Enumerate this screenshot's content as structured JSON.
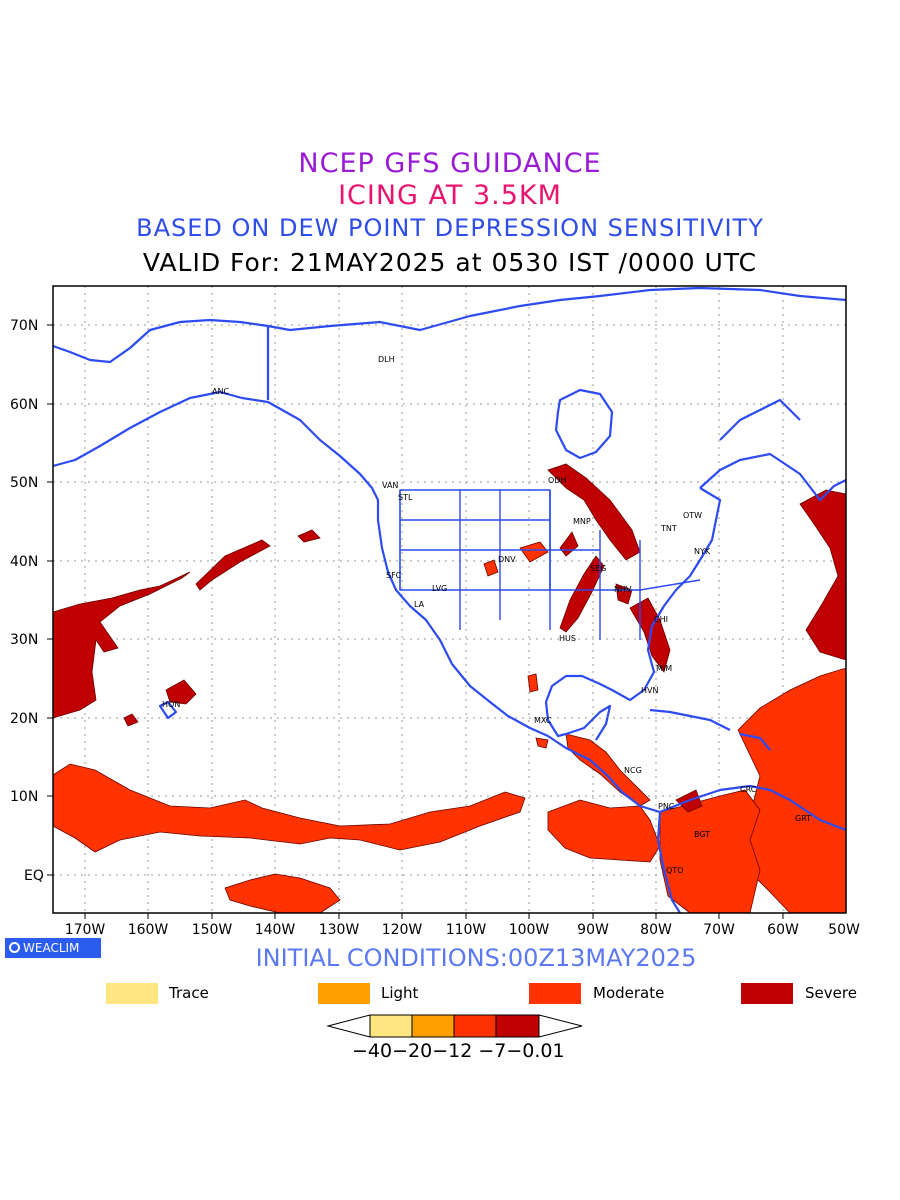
{
  "titles": {
    "line1": "NCEP GFS GUIDANCE",
    "line2": "ICING AT 3.5KM",
    "line3": "BASED ON DEW POINT DEPRESSION SENSITIVITY",
    "line4": "VALID For: 21MAY2025 at 0530 IST /0000 UTC"
  },
  "map": {
    "lon_range": [
      -175,
      -50
    ],
    "lat_range": [
      -5,
      75
    ],
    "lat_ticks": [
      "70N",
      "60N",
      "50N",
      "40N",
      "30N",
      "20N",
      "10N",
      "EQ"
    ],
    "lon_ticks": [
      "170W",
      "160W",
      "150W",
      "140W",
      "130W",
      "120W",
      "110W",
      "100W",
      "90W",
      "80W",
      "70W",
      "60W",
      "50W"
    ],
    "grid": true,
    "coastline_color": "#2d4bf0",
    "stations": [
      "ANC",
      "DLH",
      "VAN",
      "STL",
      "ODH",
      "MNP",
      "TNT",
      "OTW",
      "NYK",
      "DNV",
      "SEG",
      "SFC",
      "LVG",
      "LA",
      "NHV",
      "CHI",
      "HUS",
      "MIM",
      "HVN",
      "HON",
      "MXC",
      "NCG",
      "PNC",
      "CRC",
      "GRT",
      "BGT",
      "QTO"
    ]
  },
  "badge": {
    "label": "WEACLIM",
    "color": "#2a5cf0"
  },
  "initial_conditions": "INITIAL CONDITIONS:00Z13MAY2025",
  "legend": [
    {
      "label": "Trace",
      "color": "#ffe680"
    },
    {
      "label": "Light",
      "color": "#ffa000"
    },
    {
      "label": "Moderate",
      "color": "#ff3300"
    },
    {
      "label": "Severe",
      "color": "#c00000"
    }
  ],
  "colorbar": {
    "label": "−40−20−12 −7−0.01",
    "thresholds": [
      -40,
      -20,
      -12,
      -7,
      -0.01
    ],
    "colors": [
      "#ffe680",
      "#ffa000",
      "#ff3300",
      "#c00000"
    ]
  }
}
